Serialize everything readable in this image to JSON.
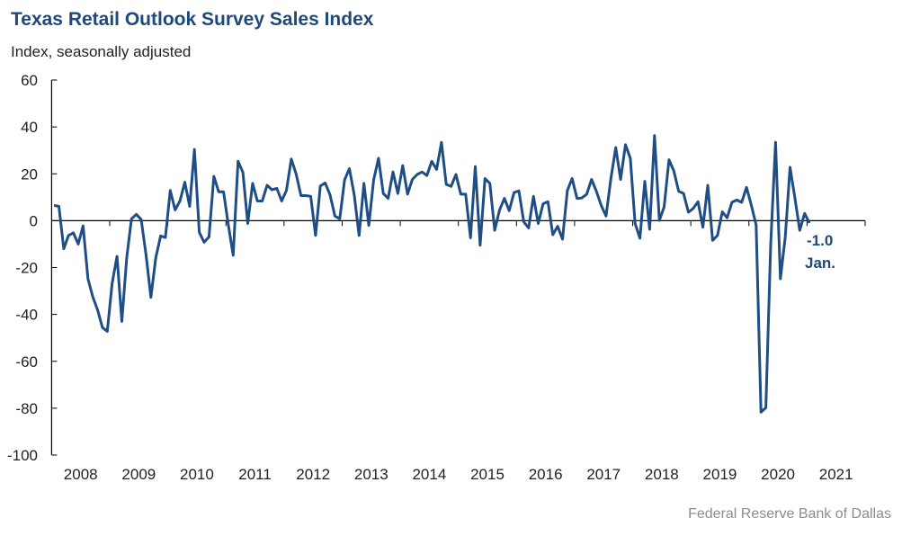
{
  "chart_data": {
    "type": "line",
    "title": "Texas Retail Outlook Survey Sales Index",
    "ylabel": "Index, seasonally adjusted",
    "xlabel": "",
    "ylim": [
      -100,
      60
    ],
    "yticks": [
      60,
      40,
      20,
      0,
      -20,
      -40,
      -60,
      -80,
      -100
    ],
    "ytick_labels": [
      "60",
      "40",
      "20",
      "0",
      "-20",
      "-40",
      "-60",
      "-80",
      "-100"
    ],
    "xticks": [
      "2008",
      "2009",
      "2010",
      "2011",
      "2012",
      "2013",
      "2014",
      "2015",
      "2016",
      "2017",
      "2018",
      "2019",
      "2020",
      "2021"
    ],
    "x_start": "2008-01",
    "x_end": "2021-01",
    "frequency": "monthly",
    "grid": false,
    "series": [
      {
        "name": "Sales Index",
        "color": "#1f4e85",
        "values": [
          6.5,
          6.1,
          -12,
          -6.3,
          -5.2,
          -10,
          -2.2,
          -24.8,
          -32.5,
          -38.2,
          -45.6,
          -47.2,
          -26.7,
          -15.2,
          -43,
          -15.9,
          0.8,
          2.7,
          0.5,
          -14.6,
          -32.7,
          -15.9,
          -6.5,
          -7.2,
          12.9,
          4.6,
          8.4,
          16.4,
          6.1,
          30.4,
          -5,
          -9.2,
          -6.9,
          18.9,
          12.3,
          12.3,
          -1.8,
          -14.8,
          25.4,
          20.6,
          -1.2,
          15.9,
          8.4,
          8.4,
          15.1,
          13.2,
          13.8,
          8.4,
          12.9,
          26.3,
          19.9,
          10.7,
          10.7,
          10.4,
          -6.3,
          14.8,
          16.1,
          11,
          2,
          0.8,
          17.4,
          22.2,
          11,
          -6.3,
          15.9,
          -2,
          17.4,
          26.6,
          11.6,
          9.5,
          20.8,
          11.6,
          23.5,
          11.3,
          17.6,
          19.7,
          20.8,
          19.3,
          25.3,
          21.9,
          33.4,
          15.5,
          14.6,
          19.7,
          11.3,
          11.3,
          -7.3,
          23.1,
          -10.5,
          18,
          15.9,
          -4.1,
          4.6,
          9.5,
          4.3,
          12,
          12.7,
          -0.5,
          -3.1,
          10.4,
          -1.2,
          7.2,
          8.1,
          -6,
          -2.4,
          -7.9,
          12.9,
          18,
          9.5,
          9.7,
          11.3,
          17.6,
          12.5,
          6.5,
          2,
          18,
          31.2,
          17.6,
          32.4,
          26.6,
          -1.2,
          -7.5,
          16.8,
          -3.7,
          36.3,
          0.1,
          5.9,
          26,
          21.2,
          12.5,
          11.6,
          3.6,
          5.2,
          8.1,
          -2.8,
          15.1,
          -8.4,
          -6.3,
          3.8,
          1.2,
          7.8,
          8.8,
          7.8,
          14.2,
          6.5,
          -1.8,
          -81.7,
          -79.8,
          -10,
          33.4,
          -24.8,
          -6.9,
          22.8,
          9.7,
          -4.1,
          3.1,
          -1.0
        ]
      }
    ],
    "annotations": {
      "last_value": "-1.0",
      "last_label": "Jan."
    },
    "source": "Federal Reserve Bank of Dallas"
  }
}
